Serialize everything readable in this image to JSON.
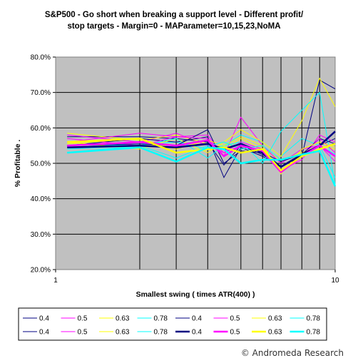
{
  "chart_data": {
    "type": "line",
    "title": "S&P500 - Go short when breaking a support level - Different profit/ stop targets - Margin=0 - MAParameter=10,15,23,NoMA",
    "title_lines": [
      "S&P500 - Go short when breaking a support level - Different profit/",
      "stop targets - Margin=0 - MAParameter=10,15,23,NoMA"
    ],
    "xlabel": "Smallest swing ( times ATR(400) )",
    "ylabel": "% Profitable .",
    "x_scale": "log",
    "xlim": [
      1,
      10
    ],
    "x_tick_labels": [
      "1",
      "10"
    ],
    "ylim": [
      20,
      80
    ],
    "y_tick_labels": [
      "20.0%",
      "30.0%",
      "40.0%",
      "50.0%",
      "60.0%",
      "70.0%",
      "80.0%"
    ],
    "x_gridlines": [
      2,
      2.7,
      3.5,
      4.6,
      5.5,
      6.4,
      7.6,
      8.8,
      10
    ],
    "grid": true,
    "legend_position": "bottom",
    "credit": "© Andromeda Research",
    "x": [
      1.1,
      2,
      2.7,
      3.5,
      4,
      4.6,
      5.5,
      6.4,
      7.6,
      8.8,
      10
    ],
    "series": [
      {
        "name": "0.4",
        "color": "#000080",
        "width": 1,
        "values": [
          57.5,
          57.5,
          57,
          56,
          49.5,
          55,
          52.5,
          49,
          52,
          55,
          57
        ]
      },
      {
        "name": "0.5",
        "color": "#ff00ff",
        "width": 1,
        "values": [
          58,
          56,
          58.5,
          55,
          53,
          55,
          53.5,
          48,
          51,
          58,
          56
        ]
      },
      {
        "name": "0.63",
        "color": "#ffff00",
        "width": 1,
        "values": [
          58.5,
          56.5,
          58,
          55.5,
          54,
          57,
          54,
          51,
          53,
          55,
          54
        ]
      },
      {
        "name": "0.78",
        "color": "#00ffff",
        "width": 1,
        "values": [
          54.5,
          55.5,
          56,
          54,
          55,
          58,
          56,
          52,
          57,
          55,
          52.5
        ]
      },
      {
        "name": "0.4",
        "color": "#000080",
        "width": 1,
        "values": [
          55,
          57,
          56,
          57.5,
          46,
          54.5,
          52,
          49,
          52,
          73.5,
          71
        ]
      },
      {
        "name": "0.5",
        "color": "#ff00ff",
        "width": 1,
        "values": [
          57,
          55,
          57.5,
          58,
          52,
          63,
          55,
          50,
          54,
          55,
          50.5
        ]
      },
      {
        "name": "0.63",
        "color": "#ffff00",
        "width": 1,
        "values": [
          56,
          54,
          57,
          53,
          56,
          59.5,
          56,
          52,
          62,
          74,
          66
        ]
      },
      {
        "name": "0.78",
        "color": "#00ffff",
        "width": 1,
        "values": [
          54,
          55,
          57,
          51.5,
          55,
          56,
          50,
          59,
          65,
          70,
          44
        ]
      },
      {
        "name": "0.4",
        "color": "#000080",
        "width": 1,
        "values": [
          55,
          55.5,
          55,
          59.5,
          50,
          53.5,
          53,
          50.5,
          52.5,
          57,
          55.5
        ]
      },
      {
        "name": "0.5",
        "color": "#ff00ff",
        "width": 1,
        "values": [
          56,
          58.5,
          57.5,
          57,
          53,
          56,
          54,
          47.5,
          52,
          57,
          53
        ]
      },
      {
        "name": "0.63",
        "color": "#ffff00",
        "width": 1,
        "values": [
          55.5,
          57,
          54,
          56.5,
          55,
          57.5,
          55,
          47,
          54,
          56,
          54.5
        ]
      },
      {
        "name": "0.78",
        "color": "#00ffff",
        "width": 1,
        "values": [
          53,
          55,
          51.5,
          55,
          56,
          54,
          55,
          51,
          52.5,
          55,
          46
        ]
      },
      {
        "name": "0.4",
        "color": "#000080",
        "width": 2.5,
        "values": [
          54.5,
          55,
          54.5,
          55.5,
          54,
          55.5,
          53,
          49,
          52.5,
          55,
          59
        ]
      },
      {
        "name": "0.5",
        "color": "#ff00ff",
        "width": 2.5,
        "values": [
          55,
          56,
          55,
          56.5,
          52,
          55,
          53.5,
          47.5,
          52,
          55,
          52
        ]
      },
      {
        "name": "0.63",
        "color": "#ffff00",
        "width": 2.5,
        "values": [
          56,
          57,
          53,
          54,
          54.5,
          53,
          54,
          48,
          52,
          54,
          55.5
        ]
      },
      {
        "name": "0.78",
        "color": "#00ffff",
        "width": 2.5,
        "values": [
          53,
          54.5,
          50.5,
          54.5,
          54,
          50,
          51,
          51,
          52.5,
          53.5,
          43.5
        ]
      }
    ]
  }
}
